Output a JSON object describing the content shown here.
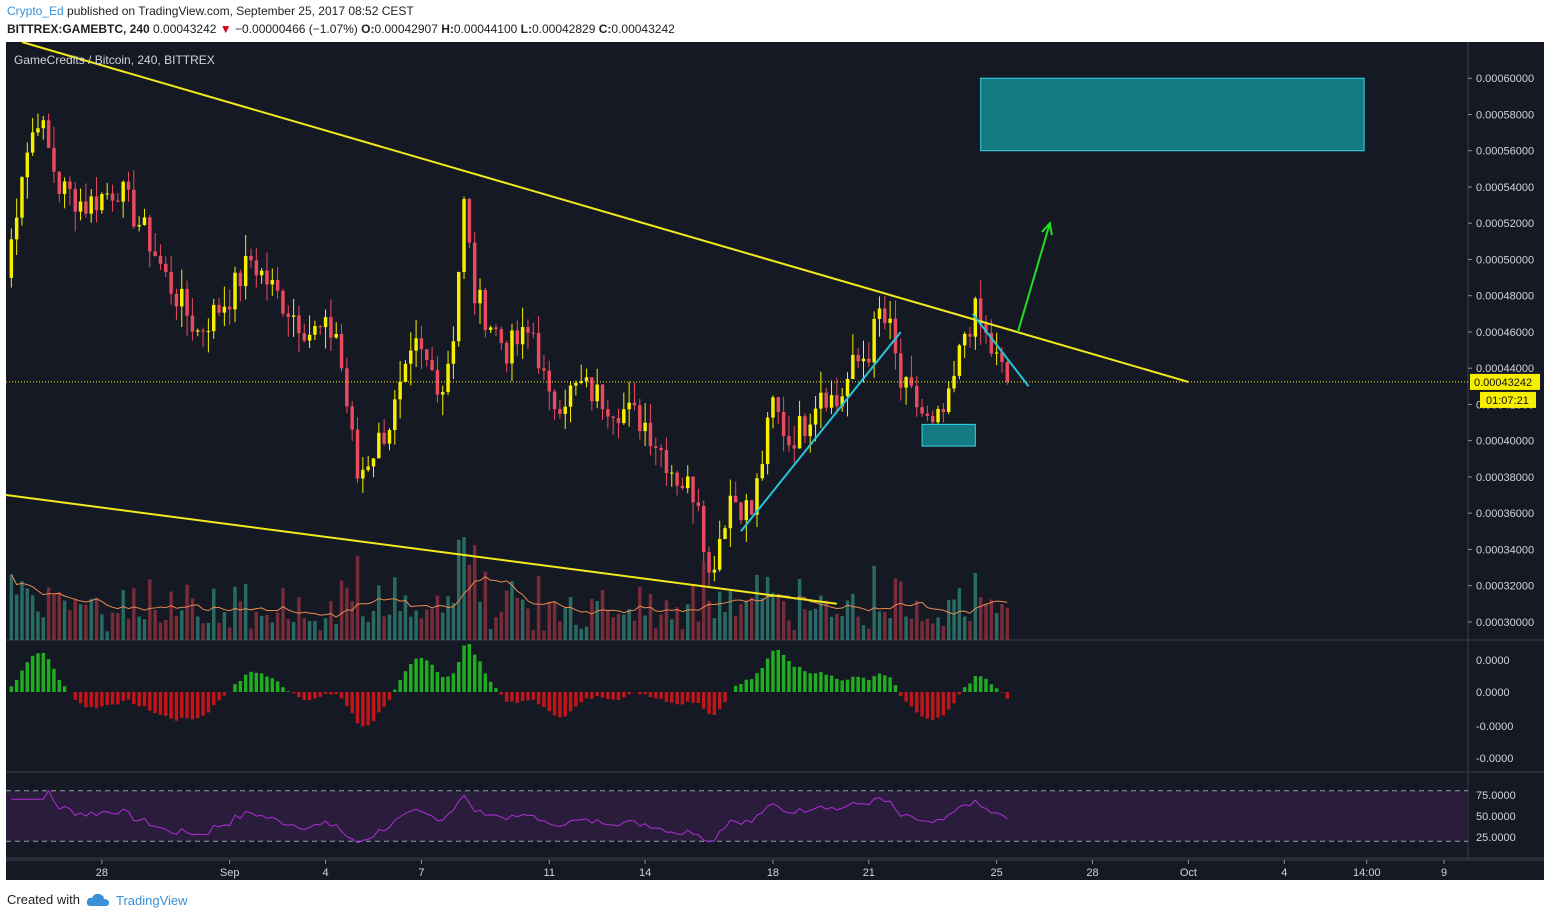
{
  "header": {
    "user": "Crypto_Ed",
    "published": " published on TradingView.com, September 25, 2017 08:52 CEST",
    "symbol": "BITTREX:GAMEBTC, 240",
    "last": "0.00043242",
    "change": "−0.00000466 (−1.07%)",
    "o_label": "O:",
    "o_value": "0.00042907",
    "h_label": "H:",
    "h_value": "0.00044100",
    "l_label": "L:",
    "l_value": "0.00042829",
    "c_label": "C:",
    "c_value": "0.00043242"
  },
  "footer": {
    "created_with": "Created with",
    "brand": "TradingView"
  },
  "chart_data": {
    "type": "candlestick",
    "title": "GameCredits / Bitcoin, 240, BITTREX",
    "colors": {
      "background": "#151924",
      "up": "#f6f000",
      "down": "#e84a5f",
      "trendline": "#f2ea1a",
      "channel": "#26c6da",
      "arrow": "#22dd22",
      "box": "#127a80",
      "macd_pos": "#1fae1f",
      "macd_neg": "#c0151a",
      "rsi": "#b02dd8",
      "volume_ma": "#e88a50"
    },
    "price_axis": {
      "ylim": [
        0.00029,
        0.00062
      ],
      "ticks": [
        "0.00060000",
        "0.00058000",
        "0.00056000",
        "0.00054000",
        "0.00052000",
        "0.00050000",
        "0.00048000",
        "0.00046000",
        "0.00044000",
        "0.00042000",
        "0.00040000",
        "0.00038000",
        "0.00036000",
        "0.00034000",
        "0.00032000",
        "0.00030000"
      ],
      "tick_values": [
        0.0006,
        0.00058,
        0.00056,
        0.00054,
        0.00052,
        0.0005,
        0.00048,
        0.00046,
        0.00044,
        0.00042,
        0.0004,
        0.00038,
        0.00036,
        0.00034,
        0.00032,
        0.0003
      ],
      "last_price_label": "0.00043242",
      "countdown_label": "01:07:21",
      "last_price": 0.00043242
    },
    "x_axis": {
      "labels": [
        "28",
        "Sep",
        "4",
        "7",
        "11",
        "14",
        "18",
        "21",
        "25",
        "28",
        "Oct",
        "4",
        "14:00",
        "9"
      ],
      "label_dates": [
        "2017-08-28",
        "2017-09-01",
        "2017-09-04",
        "2017-09-07",
        "2017-09-11",
        "2017-09-14",
        "2017-09-18",
        "2017-09-21",
        "2017-09-25",
        "2017-09-28",
        "2017-10-01",
        "2017-10-04",
        "2017-10-06 14:00",
        "2017-10-09"
      ],
      "start": "2017-08-25 00:00",
      "end": "2017-10-09 18:00"
    },
    "anchors": [
      [
        "2017-08-25 00:00",
        0.00049
      ],
      [
        "2017-08-25 12:00",
        0.00055
      ],
      [
        "2017-08-26 00:00",
        0.00058
      ],
      [
        "2017-08-26 16:00",
        0.00054
      ],
      [
        "2017-08-27 12:00",
        0.00053
      ],
      [
        "2017-08-28 12:00",
        0.00054
      ],
      [
        "2017-08-29 12:00",
        0.00051
      ],
      [
        "2017-08-30 00:00",
        0.00049
      ],
      [
        "2017-08-31 00:00",
        0.00046
      ],
      [
        "2017-09-01 00:00",
        0.00048
      ],
      [
        "2017-09-01 16:00",
        0.0005
      ],
      [
        "2017-09-02 12:00",
        0.00048
      ],
      [
        "2017-09-03 12:00",
        0.00046
      ],
      [
        "2017-09-04 08:00",
        0.00046
      ],
      [
        "2017-09-05 00:00",
        0.00038
      ],
      [
        "2017-09-06 00:00",
        0.00041
      ],
      [
        "2017-09-06 20:00",
        0.00045
      ],
      [
        "2017-09-07 16:00",
        0.00043
      ],
      [
        "2017-09-08 00:00",
        0.00046
      ],
      [
        "2017-09-08 08:00",
        0.00053
      ],
      [
        "2017-09-08 16:00",
        0.00048
      ],
      [
        "2017-09-09 16:00",
        0.00045
      ],
      [
        "2017-09-10 12:00",
        0.00046
      ],
      [
        "2017-09-11 00:00",
        0.00042
      ],
      [
        "2017-09-12 00:00",
        0.00043
      ],
      [
        "2017-09-13 00:00",
        0.00042
      ],
      [
        "2017-09-14 00:00",
        0.00041
      ],
      [
        "2017-09-15 00:00",
        0.00038
      ],
      [
        "2017-09-15 16:00",
        0.00037
      ],
      [
        "2017-09-16 00:00",
        0.000325
      ],
      [
        "2017-09-16 16:00",
        0.00037
      ],
      [
        "2017-09-17 08:00",
        0.00036
      ],
      [
        "2017-09-18 00:00",
        0.00042
      ],
      [
        "2017-09-18 12:00",
        0.0004
      ],
      [
        "2017-09-19 00:00",
        0.00041
      ],
      [
        "2017-09-19 12:00",
        0.00043
      ],
      [
        "2017-09-20 00:00",
        0.00042
      ],
      [
        "2017-09-20 12:00",
        0.00044
      ],
      [
        "2017-09-21 00:00",
        0.00045
      ],
      [
        "2017-09-21 08:00",
        0.00047
      ],
      [
        "2017-09-21 16:00",
        0.00046
      ],
      [
        "2017-09-22 00:00",
        0.00043
      ],
      [
        "2017-09-22 12:00",
        0.00042
      ],
      [
        "2017-09-23 00:00",
        0.000405
      ],
      [
        "2017-09-23 12:00",
        0.00042
      ],
      [
        "2017-09-24 00:00",
        0.00046
      ],
      [
        "2017-09-24 08:00",
        0.00047
      ],
      [
        "2017-09-24 20:00",
        0.00045
      ],
      [
        "2017-09-25 08:00",
        0.00043242
      ]
    ],
    "annotations": {
      "upper_trendline": [
        [
          "2017-08-25 12:00",
          0.00062
        ],
        [
          "2017-10-01 00:00",
          0.00043242
        ]
      ],
      "lower_trendline": [
        [
          "2017-08-25 00:00",
          0.00037
        ],
        [
          "2017-09-20 00:00",
          0.00031
        ]
      ],
      "rising_line": [
        [
          "2017-09-17 00:00",
          0.00035
        ],
        [
          "2017-09-22 00:00",
          0.00046
        ]
      ],
      "falling_line": [
        [
          "2017-09-24 06:00",
          0.00047
        ],
        [
          "2017-09-26 00:00",
          0.00043
        ]
      ],
      "arrow": [
        [
          "2017-09-25 16:00",
          0.00046
        ],
        [
          "2017-09-26 16:00",
          0.00052
        ]
      ],
      "target_box": {
        "x": [
          "2017-09-24 12:00",
          "2017-10-06 12:00"
        ],
        "y": [
          0.00056,
          0.0006
        ]
      },
      "support_box": {
        "x": [
          "2017-09-22 16:00",
          "2017-09-24 08:00"
        ],
        "y": [
          0.000397,
          0.000409
        ]
      }
    },
    "macd_axis": {
      "ticks": [
        "0.0000",
        "0.0000",
        "-0.0000",
        "-0.0000"
      ]
    },
    "rsi_axis": {
      "ticks": [
        "75.0000",
        "50.0000",
        "25.0000"
      ],
      "tick_values": [
        75,
        50,
        25
      ],
      "band": [
        20,
        80
      ]
    }
  }
}
